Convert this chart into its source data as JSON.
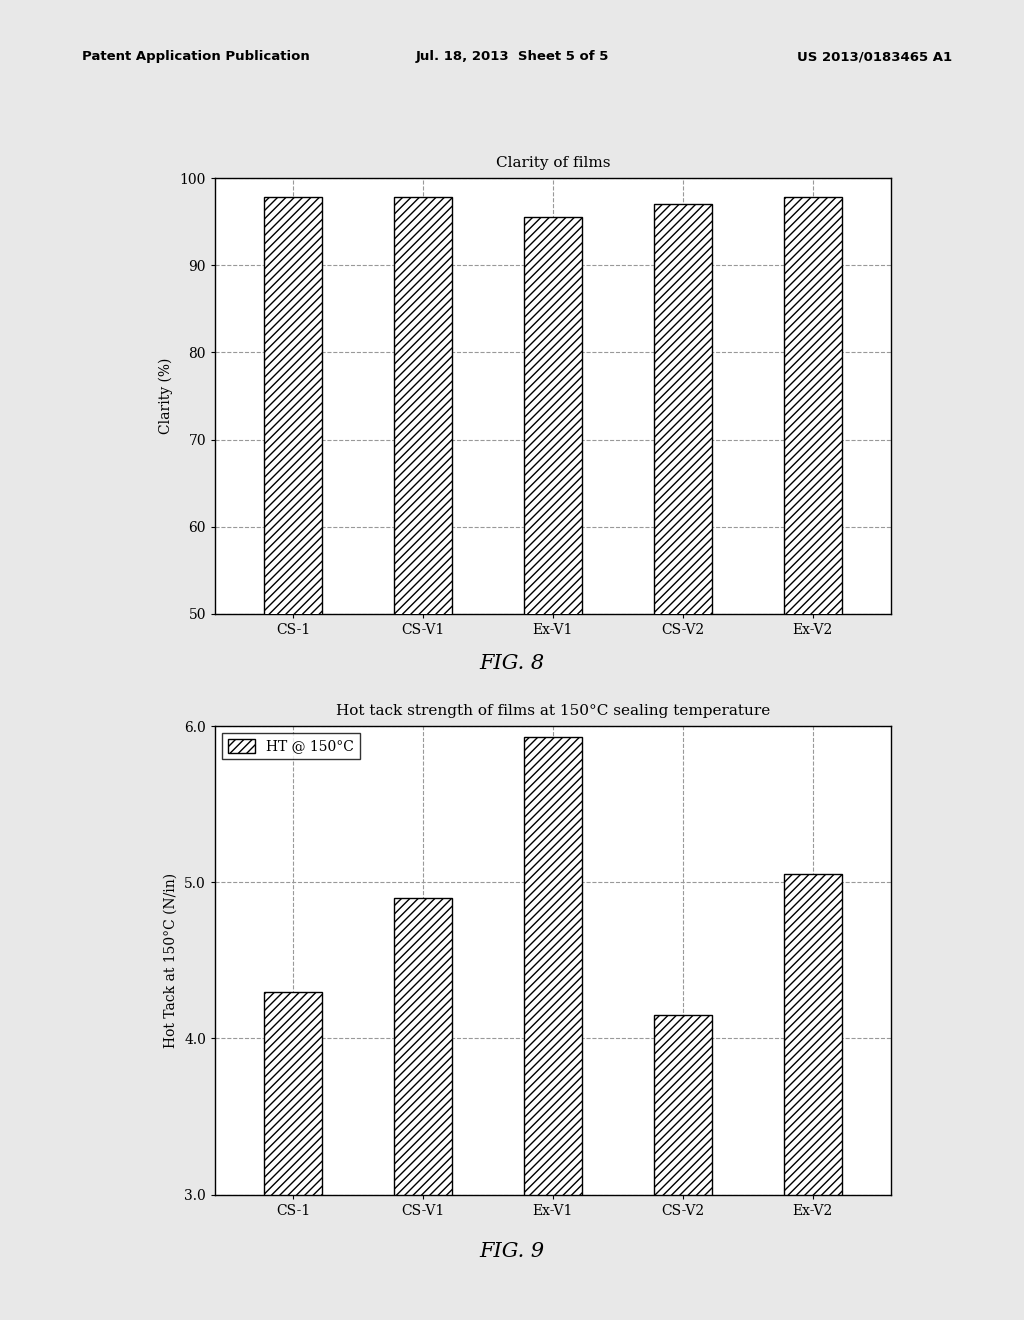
{
  "header_left": "Patent Application Publication",
  "header_mid": "Jul. 18, 2013  Sheet 5 of 5",
  "header_right": "US 2013/0183465 A1",
  "fig8": {
    "title": "Clarity of films",
    "categories": [
      "CS-1",
      "CS-V1",
      "Ex-V1",
      "CS-V2",
      "Ex-V2"
    ],
    "values": [
      97.8,
      97.8,
      95.5,
      97.0,
      97.8
    ],
    "ylabel": "Clarity (%)",
    "ylim": [
      50,
      100
    ],
    "yticks": [
      50,
      60,
      70,
      80,
      90,
      100
    ],
    "fig_label": "FIG. 8"
  },
  "fig9": {
    "title": "Hot tack strength of films at 150°C sealing temperature",
    "categories": [
      "CS-1",
      "CS-V1",
      "Ex-V1",
      "CS-V2",
      "Ex-V2"
    ],
    "values": [
      4.3,
      4.9,
      5.93,
      4.15,
      5.05
    ],
    "ylabel": "Hot Tack at 150°C (N/in)",
    "ylim": [
      3.0,
      6.0
    ],
    "yticks": [
      3.0,
      4.0,
      5.0,
      6.0
    ],
    "legend_label": "HT @ 150°C",
    "fig_label": "FIG. 9"
  },
  "hatch_pattern": "////",
  "bar_color": "white",
  "bar_edgecolor": "black",
  "grid_color": "#999999",
  "background_color": "#e8e8e8",
  "axes_bg": "white"
}
